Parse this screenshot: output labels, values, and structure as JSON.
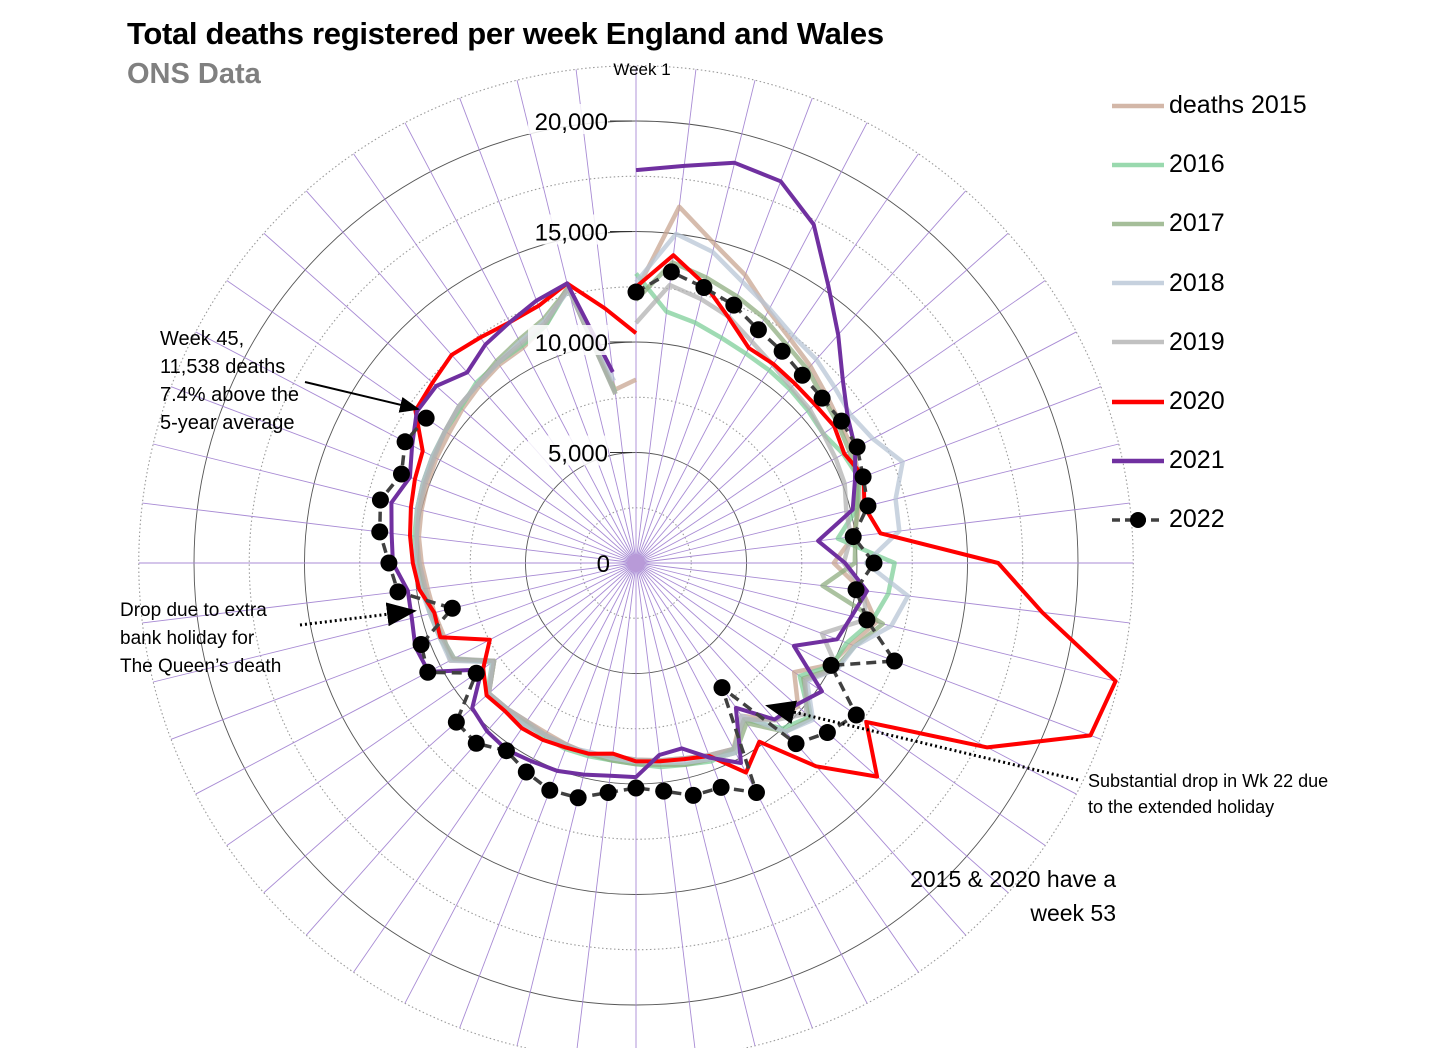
{
  "title": "Total deaths registered per week England and Wales",
  "subtitle": "ONS Data",
  "annotations": {
    "week45": [
      "Week 45,",
      "11,538  deaths",
      "7.4% above the",
      "5-year average"
    ],
    "queen": [
      "Drop due to extra",
      "bank holiday for",
      "The Queen’s death"
    ],
    "wk22": [
      "Substantial drop in Wk 22 due",
      "to the extended holiday"
    ],
    "week53": [
      "2015 & 2020 have a",
      "week 53"
    ]
  },
  "chart_data": {
    "type": "radar",
    "title": "Total deaths registered per week England and Wales",
    "subtitle": "ONS Data",
    "angular_axis": {
      "label": "Week 1",
      "categories_count": 52,
      "direction": "clockwise",
      "start": "top"
    },
    "radial_axis": {
      "range": [
        0,
        22500
      ],
      "ticks": [
        0,
        5000,
        10000,
        15000,
        20000
      ],
      "tick_labels": [
        "0",
        "5,000",
        "10,000",
        "15,000",
        "20,000"
      ],
      "minor_step": 2500
    },
    "legend_position": "right",
    "series": [
      {
        "name": "2015",
        "legend_label": "deaths 2015",
        "color": "#c8a592",
        "style": "solid",
        "values": [
          12286,
          16237,
          14866,
          13934,
          12900,
          12300,
          11900,
          11500,
          11200,
          11100,
          10800,
          10400,
          9900,
          8950,
          10300,
          11200,
          10400,
          9900,
          8700,
          9800,
          9500,
          8400,
          9500,
          9300,
          9100,
          9000,
          8900,
          8800,
          8900,
          8800,
          8700,
          8700,
          8800,
          8900,
          7800,
          9500,
          9300,
          9400,
          9500,
          9700,
          9900,
          10000,
          10100,
          10200,
          10300,
          10500,
          10700,
          10900,
          11000,
          11500,
          12900,
          7900,
          8300
        ]
      },
      {
        "name": "2016",
        "legend_label": "2016",
        "color": "#7fcf9a",
        "style": "solid",
        "values": [
          13100,
          11460,
          11200,
          10900,
          10700,
          10600,
          10500,
          10400,
          10300,
          10600,
          10800,
          10300,
          9200,
          11700,
          11500,
          11000,
          10200,
          10000,
          9000,
          10500,
          10000,
          8600,
          9500,
          9600,
          9400,
          9300,
          9100,
          9000,
          9000,
          9000,
          8900,
          8800,
          8900,
          9000,
          7900,
          9300,
          9400,
          9500,
          9800,
          9900,
          10100,
          10200,
          10300,
          10400,
          10500,
          10600,
          10900,
          11000,
          11100,
          11500,
          12800,
          7800
        ]
      },
      {
        "name": "2017",
        "legend_label": "2017",
        "color": "#8fae80",
        "style": "solid",
        "values": [
          11900,
          13700,
          13300,
          12900,
          12500,
          12000,
          11700,
          11300,
          11100,
          10900,
          10700,
          10300,
          10000,
          9900,
          8500,
          11500,
          10600,
          10200,
          9200,
          10600,
          10200,
          8800,
          9700,
          9500,
          9400,
          9200,
          9100,
          9000,
          8900,
          8900,
          8800,
          8900,
          8800,
          8900,
          7800,
          9400,
          9500,
          9600,
          9700,
          9900,
          10000,
          10200,
          10300,
          10400,
          10500,
          10700,
          10800,
          11100,
          11400,
          11800,
          12800,
          7700
        ]
      },
      {
        "name": "2018",
        "legend_label": "2018",
        "color": "#b8c5d6",
        "style": "solid",
        "values": [
          12700,
          15000,
          14500,
          13600,
          13000,
          12500,
          12300,
          12000,
          11800,
          12100,
          12900,
          12100,
          12000,
          10400,
          12400,
          11900,
          10600,
          10300,
          9400,
          10700,
          10200,
          8400,
          9700,
          9500,
          9300,
          9100,
          9000,
          8900,
          8800,
          8900,
          8800,
          8900,
          8800,
          8900,
          7900,
          9500,
          9500,
          9600,
          9800,
          10000,
          10000,
          10200,
          10300,
          10400,
          10500,
          10700,
          10800,
          11000,
          11300,
          11700,
          12700,
          8300
        ]
      },
      {
        "name": "2019",
        "legend_label": "2019",
        "color": "#b2b2b2",
        "style": "solid",
        "values": [
          10860,
          12670,
          12300,
          11900,
          11300,
          10900,
          10600,
          10500,
          10300,
          10200,
          10100,
          9800,
          9800,
          9400,
          10400,
          10700,
          9000,
          10300,
          9300,
          10300,
          9500,
          8600,
          9500,
          9300,
          9100,
          9000,
          8900,
          8800,
          8900,
          8800,
          8800,
          8700,
          8800,
          8900,
          7800,
          9300,
          9400,
          9500,
          9600,
          9800,
          10000,
          10100,
          10200,
          10300,
          10500,
          10700,
          10800,
          11000,
          11200,
          11600,
          12800,
          7700
        ]
      },
      {
        "name": "2020",
        "legend_label": "2020",
        "color": "#ff0000",
        "style": "solid",
        "values": [
          12490,
          14030,
          12990,
          11856,
          10986,
          10944,
          10841,
          10816,
          10895,
          10645,
          11019,
          10645,
          11141,
          16387,
          18516,
          22351,
          21997,
          17953,
          12657,
          14573,
          12288,
          9824,
          10709,
          9339,
          9140,
          9032,
          8979,
          8690,
          8891,
          8933,
          9044,
          9087,
          8946,
          9032,
          8400,
          7470,
          9470,
          9400,
          9880,
          10100,
          10300,
          10490,
          10700,
          10900,
          12130,
          12300,
          12580,
          12400,
          12300,
          12440,
          13030,
          11600,
          10400
        ]
      },
      {
        "name": "2021",
        "legend_label": "2021",
        "color": "#7030a0",
        "style": "solid",
        "values": [
          17780,
          18100,
          18650,
          18470,
          17300,
          15300,
          13800,
          12500,
          11640,
          11200,
          10600,
          10100,
          8300,
          9460,
          10530,
          10050,
          9730,
          8070,
          10220,
          9680,
          9460,
          7960,
          10220,
          9420,
          8640,
          8750,
          9690,
          9700,
          9860,
          10060,
          10140,
          10280,
          10170,
          9900,
          8480,
          10600,
          10680,
          10450,
          10400,
          11000,
          11140,
          11400,
          10940,
          11440,
          12050,
          12080,
          11520,
          12000,
          12300,
          12700,
          13030,
          8700
        ]
      },
      {
        "name": "2022",
        "legend_label": "2022",
        "color": "#000000",
        "style": "dashed-markers",
        "values": [
          12260,
          13270,
          12840,
          12480,
          11920,
          11640,
          11350,
          11250,
          11300,
          11300,
          10990,
          10810,
          9900,
          10770,
          10030,
          10760,
          12510,
          9970,
          12110,
          11570,
          10920,
          6850,
          11730,
          10860,
          10830,
          10400,
          10180,
          10460,
          10940,
          11000,
          10680,
          10320,
          10900,
          10860,
          8780,
          10640,
          10400,
          8560,
          10850,
          11180,
          11680,
          11910,
          11350,
          11800,
          11538
        ]
      }
    ]
  }
}
